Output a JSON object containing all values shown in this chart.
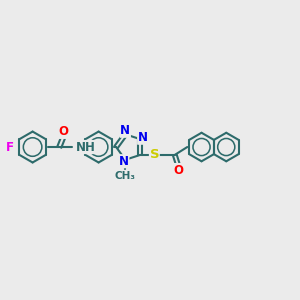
{
  "bg_color": "#ebebeb",
  "bond_color": "#2d6b6b",
  "bond_width": 1.5,
  "atom_colors": {
    "F": "#ee00ee",
    "O": "#ff0000",
    "N": "#0000ee",
    "S": "#cccc00",
    "C": "#2d6b6b"
  },
  "font_size": 8.5,
  "figsize": [
    3.0,
    3.0
  ],
  "dpi": 100
}
